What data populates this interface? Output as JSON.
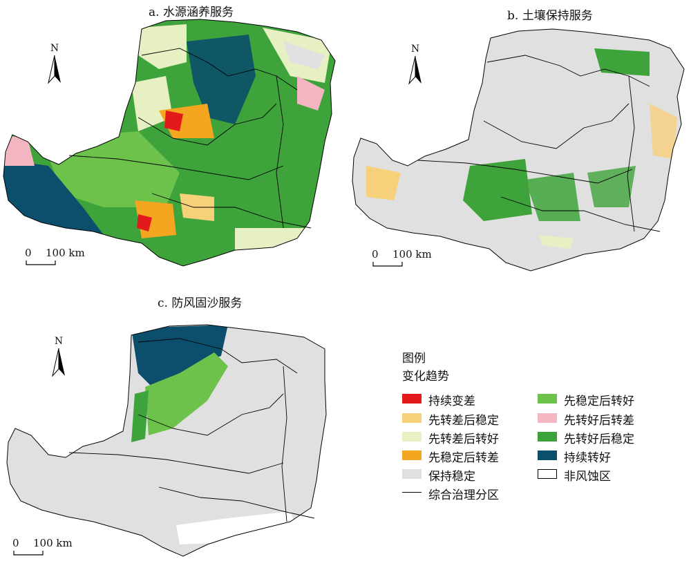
{
  "panels": {
    "a": {
      "title": "a. 水源涵养服务"
    },
    "b": {
      "title": "b. 土壤保持服务"
    },
    "c": {
      "title": "c. 防风固沙服务"
    }
  },
  "north_label": "N",
  "scale": {
    "zero": "0",
    "distance": "100 km"
  },
  "legend": {
    "title": "图例",
    "subtitle": "变化趋势",
    "items": [
      {
        "label": "持续变差",
        "color": "#e31a1c"
      },
      {
        "label": "先转差后稳定",
        "color": "#f7d07a"
      },
      {
        "label": "先转差后转好",
        "color": "#e6f0c2"
      },
      {
        "label": "先稳定后转差",
        "color": "#f4a620"
      },
      {
        "label": "保持稳定",
        "color": "#e0e0e0"
      },
      {
        "label": "综合治理分区",
        "color": "#000000"
      },
      {
        "label": "先稳定后转好",
        "color": "#6cc24a"
      },
      {
        "label": "先转好后转差",
        "color": "#f4b6c2"
      },
      {
        "label": "先转好后稳定",
        "color": "#3ea33a"
      },
      {
        "label": "持续转好",
        "color": "#0b4f6c"
      },
      {
        "label": "非风蚀区",
        "color": "#ffffff"
      }
    ]
  }
}
